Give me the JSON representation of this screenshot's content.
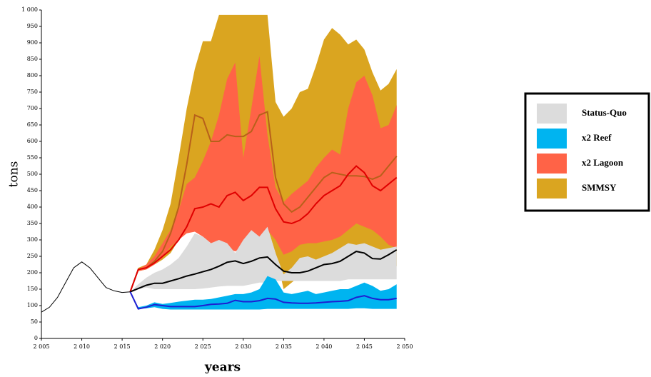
{
  "chart_data": {
    "type": "band",
    "x_label": "years",
    "y_label": "tons",
    "xlim": [
      2005,
      2050
    ],
    "ylim": [
      0,
      1000
    ],
    "xticks": [
      {
        "value": 2005,
        "label": "2 005"
      },
      {
        "value": 2010,
        "label": "2 010"
      },
      {
        "value": 2015,
        "label": "2 015"
      },
      {
        "value": 2020,
        "label": "2 020"
      },
      {
        "value": 2025,
        "label": "2 025"
      },
      {
        "value": 2030,
        "label": "2 030"
      },
      {
        "value": 2035,
        "label": "2 035"
      },
      {
        "value": 2040,
        "label": "2 040"
      },
      {
        "value": 2045,
        "label": "2 045"
      },
      {
        "value": 2050,
        "label": "2 050"
      }
    ],
    "yticks": [
      0,
      50,
      100,
      150,
      200,
      250,
      300,
      350,
      400,
      450,
      500,
      550,
      600,
      650,
      700,
      750,
      800,
      850,
      900,
      950,
      {
        "value": 1000,
        "label": "1 000"
      }
    ],
    "history": {
      "color": "#000000",
      "x": [
        2005,
        2006,
        2007,
        2008,
        2009,
        2010,
        2011,
        2012,
        2013,
        2014,
        2015,
        2016
      ],
      "values": [
        80,
        95,
        125,
        170,
        215,
        233,
        215,
        185,
        155,
        145,
        140,
        142
      ]
    },
    "x": [
      2016,
      2017,
      2018,
      2019,
      2020,
      2021,
      2022,
      2023,
      2024,
      2025,
      2026,
      2027,
      2028,
      2029,
      2030,
      2031,
      2032,
      2033,
      2034,
      2035,
      2036,
      2037,
      2038,
      2039,
      2040,
      2041,
      2042,
      2043,
      2044,
      2045,
      2046,
      2047,
      2048,
      2049
    ],
    "series": [
      {
        "name": "Status-Quo",
        "color": "#dcdcdc",
        "line_color": "#000000",
        "lower": [
          142,
          150,
          155,
          150,
          150,
          150,
          150,
          150,
          150,
          152,
          155,
          158,
          160,
          160,
          160,
          165,
          170,
          170,
          175,
          175,
          175,
          175,
          175,
          175,
          175,
          175,
          175,
          180,
          180,
          180,
          180,
          180,
          180,
          180
        ],
        "upper": [
          142,
          165,
          185,
          200,
          210,
          225,
          245,
          280,
          320,
          310,
          290,
          300,
          290,
          260,
          300,
          330,
          310,
          340,
          260,
          195,
          215,
          245,
          250,
          240,
          250,
          260,
          275,
          290,
          285,
          290,
          280,
          270,
          275,
          280
        ],
        "median": [
          142,
          152,
          162,
          168,
          168,
          175,
          182,
          190,
          196,
          203,
          210,
          220,
          232,
          236,
          228,
          235,
          245,
          248,
          225,
          205,
          200,
          200,
          205,
          215,
          225,
          228,
          235,
          250,
          265,
          260,
          243,
          242,
          255,
          270
        ]
      },
      {
        "name": "x2 Reef",
        "color": "#00b4f0",
        "line_color": "#1e1ed2",
        "lower": [
          142,
          90,
          92,
          95,
          90,
          88,
          88,
          88,
          88,
          88,
          88,
          88,
          88,
          88,
          88,
          88,
          88,
          90,
          90,
          90,
          90,
          90,
          90,
          90,
          90,
          90,
          90,
          90,
          92,
          92,
          90,
          90,
          90,
          90
        ],
        "upper": [
          142,
          95,
          100,
          110,
          105,
          108,
          112,
          115,
          118,
          118,
          120,
          125,
          130,
          135,
          135,
          140,
          150,
          190,
          180,
          140,
          135,
          140,
          145,
          135,
          140,
          145,
          150,
          150,
          160,
          170,
          160,
          145,
          150,
          165
        ],
        "median": [
          142,
          90,
          95,
          103,
          100,
          97,
          97,
          97,
          97,
          100,
          104,
          105,
          107,
          116,
          112,
          112,
          115,
          122,
          120,
          110,
          108,
          107,
          107,
          108,
          110,
          112,
          113,
          115,
          125,
          130,
          122,
          118,
          118,
          122
        ]
      },
      {
        "name": "x2 Lagoon",
        "color": "#ff6347",
        "line_color": "#e00000",
        "lower": [
          142,
          205,
          210,
          225,
          245,
          280,
          300,
          320,
          325,
          310,
          290,
          280,
          275,
          265,
          280,
          310,
          290,
          330,
          300,
          255,
          265,
          285,
          290,
          290,
          295,
          300,
          310,
          330,
          350,
          340,
          330,
          310,
          285,
          275
        ],
        "upper": [
          142,
          210,
          225,
          250,
          290,
          330,
          390,
          470,
          490,
          540,
          600,
          680,
          790,
          840,
          550,
          700,
          860,
          620,
          460,
          415,
          440,
          460,
          480,
          520,
          550,
          575,
          560,
          700,
          780,
          800,
          740,
          640,
          650,
          710
        ],
        "median": [
          142,
          210,
          215,
          230,
          250,
          270,
          300,
          340,
          395,
          400,
          410,
          400,
          435,
          445,
          420,
          435,
          460,
          460,
          395,
          355,
          350,
          360,
          380,
          410,
          435,
          450,
          465,
          500,
          525,
          505,
          465,
          450,
          470,
          490
        ]
      },
      {
        "name": "SMMSY",
        "color": "#daa520",
        "line_color": "#b8601a",
        "lower": [
          142,
          205,
          210,
          225,
          240,
          260,
          300,
          340,
          360,
          330,
          290,
          310,
          300,
          295,
          280,
          290,
          300,
          340,
          260,
          150,
          170,
          190,
          200,
          210,
          220,
          230,
          250,
          260,
          255,
          250,
          240,
          230,
          225,
          220
        ],
        "upper": [
          142,
          215,
          225,
          270,
          330,
          410,
          550,
          700,
          820,
          905,
          905,
          985,
          985,
          985,
          985,
          985,
          985,
          985,
          720,
          675,
          700,
          750,
          760,
          830,
          910,
          945,
          925,
          895,
          910,
          880,
          810,
          755,
          775,
          820
        ],
        "median": [
          142,
          210,
          215,
          235,
          265,
          320,
          400,
          530,
          680,
          670,
          600,
          600,
          620,
          615,
          615,
          630,
          680,
          690,
          490,
          410,
          385,
          400,
          430,
          460,
          490,
          505,
          500,
          495,
          495,
          493,
          485,
          495,
          525,
          555
        ]
      }
    ],
    "draw_order": [
      3,
      2,
      0,
      1
    ]
  }
}
